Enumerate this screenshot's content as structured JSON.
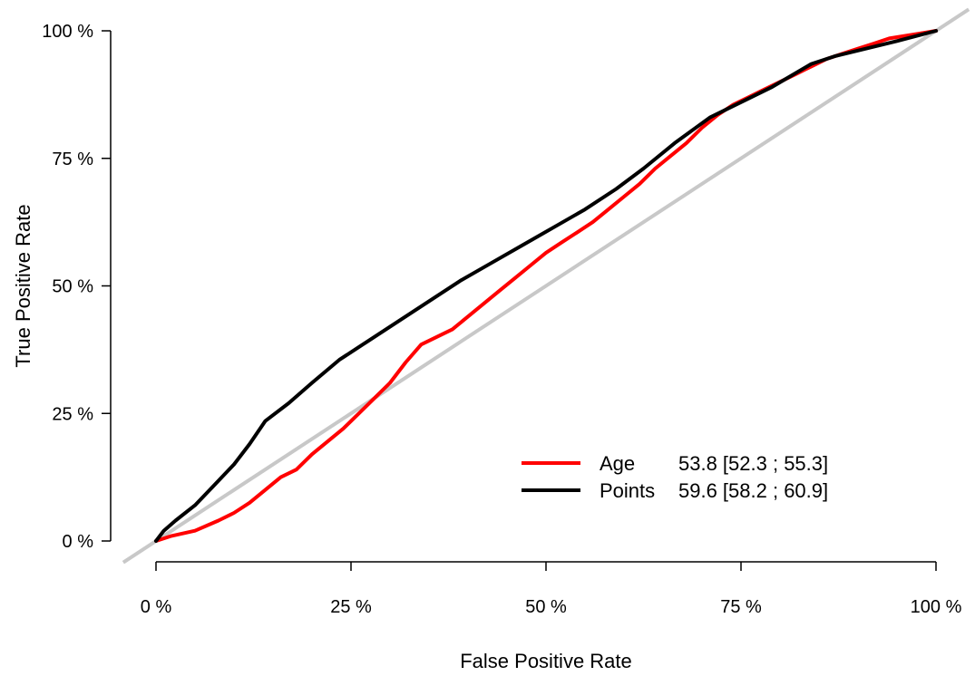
{
  "chart_data": {
    "type": "line",
    "xlabel": "False Positive Rate",
    "ylabel": "True Positive Rate",
    "xlim": [
      0,
      100
    ],
    "ylim": [
      0,
      100
    ],
    "x_ticks": [
      0,
      25,
      50,
      75,
      100
    ],
    "y_ticks": [
      0,
      25,
      50,
      75,
      100
    ],
    "x_tick_labels": [
      "0 %",
      "25 %",
      "50 %",
      "75 %",
      "100 %"
    ],
    "y_tick_labels": [
      "0 %",
      "25 %",
      "50 %",
      "75 %",
      "100 %"
    ],
    "grid": false,
    "legend_position": "bottom-right",
    "reference_line": {
      "from": [
        0,
        0
      ],
      "to": [
        100,
        100
      ],
      "color": "#c8c8c8"
    },
    "series": [
      {
        "name": "Age",
        "auc_label": "53.8 [52.3 ; 55.3]",
        "color": "#ff0000",
        "x": [
          0,
          2,
          5,
          8,
          10,
          12,
          14,
          16,
          18,
          20,
          22,
          24,
          26,
          28,
          30,
          32,
          34,
          36,
          38,
          40,
          42,
          44,
          46,
          48,
          50,
          52,
          54,
          56,
          58,
          60,
          62,
          64,
          66,
          68,
          70,
          72,
          74,
          76,
          78,
          80,
          82,
          84,
          86,
          88,
          90,
          92,
          94,
          96,
          98,
          100
        ],
        "y": [
          0,
          1,
          2,
          4,
          5.5,
          7.5,
          10,
          12.5,
          14,
          17,
          19.5,
          22,
          25,
          28,
          31,
          35,
          38.5,
          40,
          41.5,
          44,
          46.5,
          49,
          51.5,
          54,
          56.5,
          58.5,
          60.5,
          62.5,
          65,
          67.5,
          70,
          73,
          75.5,
          78,
          81,
          83.5,
          85.5,
          87,
          88.5,
          90,
          91.5,
          93,
          94.5,
          95.5,
          96.5,
          97.5,
          98.5,
          99,
          99.5,
          100
        ]
      },
      {
        "name": "Points",
        "auc_label": "59.6 [58.2 ; 60.9]",
        "color": "#000000",
        "x": [
          0,
          1,
          2.5,
          5,
          7.5,
          10,
          12,
          14,
          17,
          20,
          23.5,
          27,
          31,
          35,
          39,
          43,
          47,
          51,
          55,
          59,
          62.5,
          66.5,
          71,
          75,
          79,
          84,
          87,
          91,
          95,
          100
        ],
        "y": [
          0,
          2,
          4,
          7,
          11,
          15,
          19,
          23.5,
          27,
          31,
          35.5,
          39,
          43,
          47,
          51,
          54.5,
          58,
          61.5,
          65,
          69,
          73,
          78,
          83,
          86,
          89,
          93.5,
          95,
          96.5,
          98,
          100
        ]
      }
    ]
  }
}
